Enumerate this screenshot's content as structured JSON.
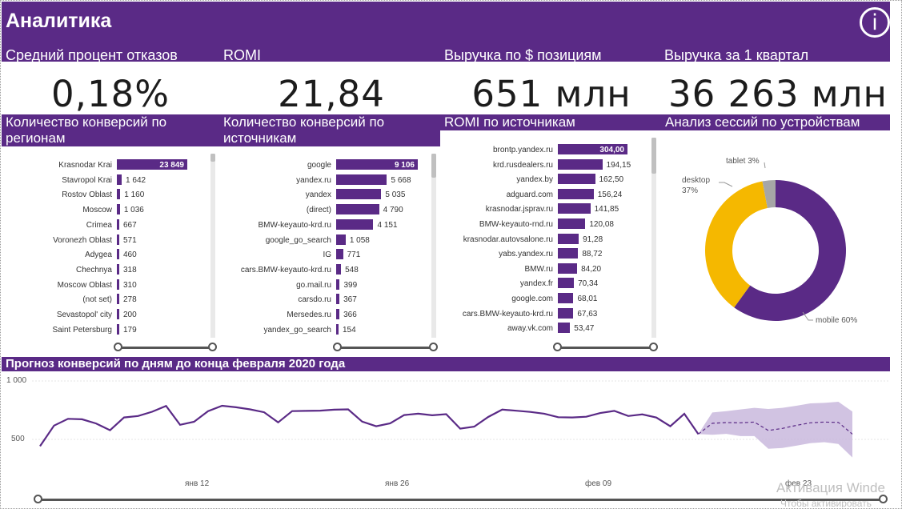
{
  "header": {
    "title": "Аналитика",
    "info_icon": "info-icon"
  },
  "kpis": [
    {
      "label": "Средний процент отказов",
      "value": "0,18%"
    },
    {
      "label": "ROMI",
      "value": "21,84"
    },
    {
      "label": "Выручка по $ позициям",
      "value": "651 млн"
    },
    {
      "label": "Выручка за 1 квартал",
      "value": "36 263 млн"
    }
  ],
  "regions_chart": {
    "title": "Количество конверсий по регионам",
    "categories": [
      "Krasnodar Krai",
      "Stavropol Krai",
      "Rostov Oblast",
      "Moscow",
      "Crimea",
      "Voronezh Oblast",
      "Adygea",
      "Chechnya",
      "Moscow Oblast",
      "(not set)",
      "Sevastopol' city",
      "Saint Petersburg"
    ],
    "values": [
      23849,
      1642,
      1160,
      1036,
      667,
      571,
      460,
      318,
      310,
      278,
      200,
      179
    ],
    "labels": [
      "23 849",
      "1 642",
      "1 160",
      "1 036",
      "667",
      "571",
      "460",
      "318",
      "310",
      "278",
      "200",
      "179"
    ]
  },
  "sources_chart": {
    "title": "Количество конверсий по источникам",
    "categories": [
      "google",
      "yandex.ru",
      "yandex",
      "(direct)",
      "BMW-keyauto-krd.ru",
      "google_go_search",
      "IG",
      "cars.BMW-keyauto-krd.ru",
      "go.mail.ru",
      "carsdo.ru",
      "Mersedes.ru",
      "yandex_go_search"
    ],
    "values": [
      9106,
      5668,
      5035,
      4790,
      4151,
      1058,
      771,
      548,
      399,
      367,
      366,
      154
    ],
    "labels": [
      "9 106",
      "5 668",
      "5 035",
      "4 790",
      "4 151",
      "1 058",
      "771",
      "548",
      "399",
      "367",
      "366",
      "154"
    ]
  },
  "romi_chart": {
    "title": "ROMI по источникам",
    "categories": [
      "brontp.yandex.ru",
      "krd.rusdealers.ru",
      "yandex.by",
      "adguard.com",
      "krasnodar.jsprav.ru",
      "BMW-keyauto-rnd.ru",
      "krasnodar.autovsalone.ru",
      "yabs.yandex.ru",
      "BMW.ru",
      "yandex.fr",
      "google.com",
      "cars.BMW-keyauto-krd.ru",
      "away.vk.com"
    ],
    "values": [
      304.0,
      194.15,
      162.5,
      156.24,
      141.85,
      120.08,
      91.28,
      88.72,
      84.2,
      70.34,
      68.01,
      67.63,
      53.47
    ],
    "labels": [
      "304,00",
      "194,15",
      "162,50",
      "156,24",
      "141,85",
      "120,08",
      "91,28",
      "88,72",
      "84,20",
      "70,34",
      "68,01",
      "67,63",
      "53,47"
    ]
  },
  "devices_chart": {
    "title": "Анализ сессий по устройствам",
    "type": "pie",
    "slices": [
      {
        "label": "mobile 60%",
        "name": "mobile",
        "value": 60,
        "color": "#5a2a86"
      },
      {
        "label": "desktop 37%",
        "name": "desktop",
        "value": 37,
        "color": "#f5b800"
      },
      {
        "label": "tablet 3%",
        "name": "tablet",
        "value": 3,
        "color": "#a6a6a6"
      }
    ]
  },
  "forecast": {
    "title": "Прогноз конверсий по дням до конца февраля 2020 года",
    "y_ticks": [
      "1 000",
      "500"
    ],
    "x_ticks": [
      "янв 12",
      "янв 26",
      "фев 09",
      "фев 23"
    ]
  },
  "chart_data": {
    "type": "line",
    "title": "Прогноз конверсий по дням до конца февраля 2020 года",
    "ylim": [
      0,
      1000
    ],
    "y_ticks": [
      1000,
      500
    ],
    "x_ticks": [
      "янв 12",
      "янв 26",
      "фев 09",
      "фев 23"
    ],
    "series": [
      {
        "values": [
          442,
          618,
          676,
          672,
          636,
          578,
          688,
          700,
          736,
          786,
          625,
          651,
          742,
          788,
          775,
          757,
          732,
          645,
          742,
          744,
          746,
          754,
          757,
          652,
          612,
          638,
          708,
          720,
          706,
          716,
          592,
          609,
          692,
          755,
          745,
          735,
          720,
          690,
          688,
          694,
          725,
          744,
          700,
          714,
          687,
          612,
          719,
          545
        ]
      }
    ],
    "forecast": {
      "values": [
        545,
        638,
        644,
        642,
        648,
        576,
        594,
        620,
        642,
        648,
        645,
        545
      ],
      "upper": [
        545,
        730,
        742,
        756,
        770,
        760,
        770,
        788,
        808,
        812,
        822,
        738
      ],
      "lower": [
        545,
        540,
        547,
        528,
        528,
        420,
        426,
        446,
        468,
        476,
        460,
        345
      ]
    }
  },
  "watermark": {
    "line1": "Активация Winde",
    "line2": "Чтобы активировать"
  }
}
